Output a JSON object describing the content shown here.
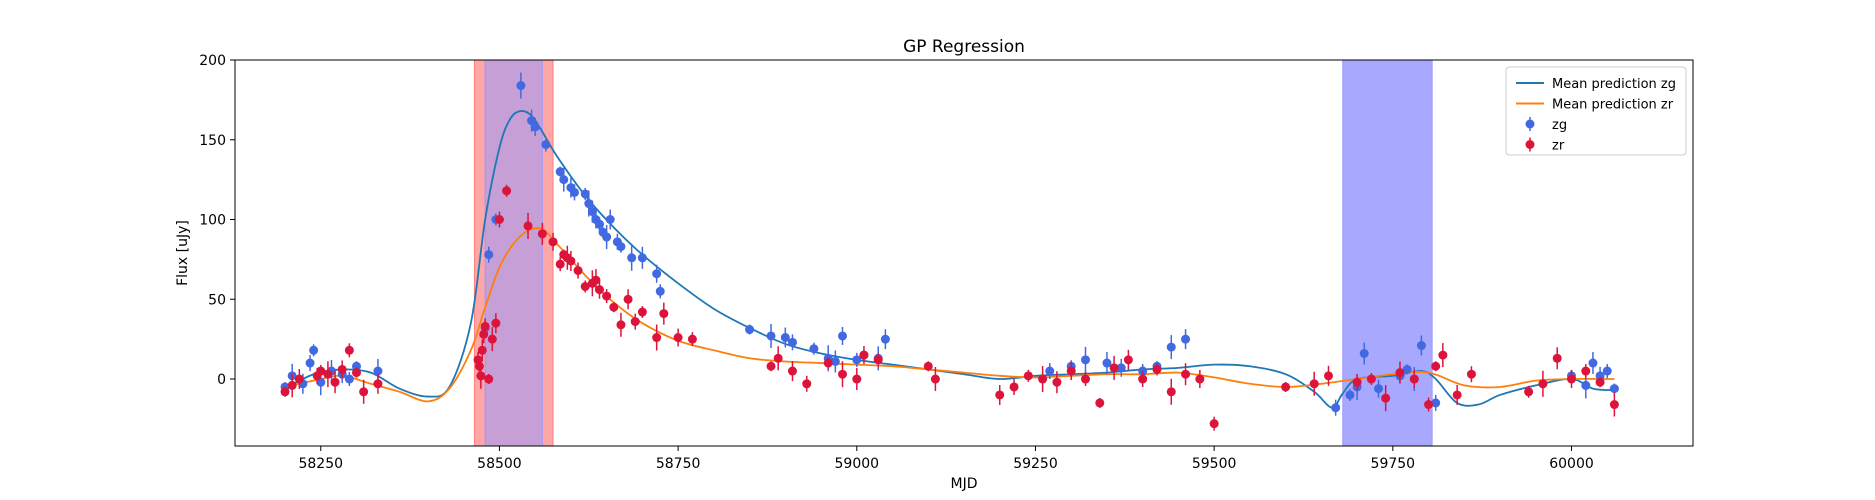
{
  "chart_data": {
    "type": "scatter",
    "title": "GP Regression",
    "xlabel": "MJD",
    "ylabel": "Flux [uJy]",
    "xlim": [
      58130,
      60170
    ],
    "ylim": [
      -42,
      200
    ],
    "x_ticks": [
      58250,
      58500,
      58750,
      59000,
      59250,
      59500,
      59750,
      60000
    ],
    "y_ticks": [
      0,
      50,
      100,
      150,
      200
    ],
    "grid": false,
    "legend_position": "top-right",
    "shaded_regions": [
      {
        "x0": 58465,
        "x1": 58575,
        "color": "#ff8080",
        "alpha": 0.7
      },
      {
        "x0": 58480,
        "x1": 58560,
        "color": "#9999ff",
        "alpha": 0.55
      },
      {
        "x0": 59680,
        "x1": 59805,
        "color": "#9999ff",
        "alpha": 0.85
      }
    ],
    "lines": [
      {
        "name": "Mean prediction zg",
        "color": "#1f77b4",
        "x": [
          58200,
          58240,
          58280,
          58320,
          58360,
          58400,
          58430,
          58460,
          58480,
          58500,
          58515,
          58530,
          58545,
          58560,
          58580,
          58620,
          58660,
          58700,
          58750,
          58800,
          58850,
          58900,
          58950,
          59000,
          59050,
          59100,
          59150,
          59200,
          59250,
          59300,
          59350,
          59400,
          59450,
          59500,
          59550,
          59600,
          59640,
          59665,
          59680,
          59700,
          59750,
          59790,
          59810,
          59840,
          59870,
          59900,
          59950,
          60000,
          60030,
          60060
        ],
        "y": [
          -6,
          3,
          6,
          4,
          -6,
          -11,
          -5,
          35,
          100,
          145,
          163,
          168,
          165,
          155,
          140,
          115,
          95,
          78,
          60,
          44,
          32,
          22,
          16,
          12,
          9,
          6,
          3,
          0,
          2,
          3,
          4,
          6,
          7,
          9,
          8,
          3,
          -8,
          -18,
          -9,
          0,
          2,
          5,
          0,
          -15,
          -16,
          -10,
          -4,
          0,
          -6,
          -7
        ]
      },
      {
        "name": "Mean prediction zr",
        "color": "#ff7f0e",
        "x": [
          58200,
          58240,
          58280,
          58320,
          58360,
          58400,
          58430,
          58460,
          58480,
          58500,
          58520,
          58540,
          58560,
          58580,
          58620,
          58660,
          58700,
          58750,
          58800,
          58850,
          58900,
          58950,
          59000,
          59050,
          59100,
          59150,
          59200,
          59250,
          59300,
          59350,
          59400,
          59450,
          59500,
          59550,
          59600,
          59650,
          59700,
          59750,
          59800,
          59850,
          59900,
          59950,
          60000,
          60060
        ],
        "y": [
          -5,
          -1,
          2,
          -3,
          -8,
          -14,
          -6,
          18,
          45,
          70,
          85,
          93,
          94,
          85,
          65,
          48,
          35,
          24,
          18,
          13,
          11,
          10,
          9,
          8,
          6,
          4,
          2,
          1,
          2,
          3,
          3,
          4,
          1,
          -3,
          -5,
          -3,
          0,
          3,
          4,
          -4,
          -5,
          -1,
          0,
          0
        ]
      }
    ],
    "series": [
      {
        "name": "zg",
        "color": "#4169e1",
        "x": [
          58200,
          58210,
          58225,
          58235,
          58240,
          58250,
          58265,
          58280,
          58290,
          58300,
          58330,
          58480,
          58485,
          58495,
          58530,
          58545,
          58550,
          58565,
          58585,
          58590,
          58600,
          58605,
          58620,
          58625,
          58630,
          58635,
          58640,
          58645,
          58650,
          58655,
          58665,
          58670,
          58685,
          58700,
          58720,
          58725,
          58850,
          58880,
          58900,
          58910,
          58940,
          58960,
          58970,
          58980,
          59000,
          59010,
          59030,
          59040,
          59270,
          59300,
          59320,
          59350,
          59370,
          59400,
          59420,
          59440,
          59460,
          59670,
          59690,
          59700,
          59710,
          59730,
          59760,
          59770,
          59780,
          59790,
          59810,
          60000,
          60020,
          60030,
          60040,
          60050,
          60060
        ],
        "y": [
          -5,
          2,
          -3,
          10,
          18,
          -2,
          5,
          3,
          0,
          8,
          5,
          32,
          78,
          100,
          184,
          162,
          158,
          147,
          130,
          125,
          120,
          117,
          116,
          110,
          105,
          100,
          97,
          92,
          89,
          100,
          86,
          83,
          76,
          76,
          66,
          55,
          31,
          27,
          26,
          23,
          19,
          13,
          11,
          27,
          12,
          15,
          13,
          25,
          5,
          8,
          12,
          10,
          7,
          5,
          8,
          20,
          25,
          -18,
          -10,
          -5,
          16,
          -6,
          2,
          6,
          0,
          21,
          -15,
          2,
          -4,
          10,
          2,
          5,
          -6
        ]
      },
      {
        "name": "zr",
        "color": "#dc143c",
        "x": [
          58200,
          58210,
          58220,
          58245,
          58250,
          58260,
          58270,
          58280,
          58290,
          58300,
          58310,
          58330,
          58470,
          58472,
          58474,
          58476,
          58478,
          58480,
          58485,
          58490,
          58495,
          58500,
          58510,
          58540,
          58560,
          58575,
          58585,
          58590,
          58595,
          58600,
          58610,
          58620,
          58630,
          58635,
          58640,
          58650,
          58660,
          58670,
          58680,
          58690,
          58700,
          58720,
          58730,
          58750,
          58770,
          58880,
          58890,
          58910,
          58930,
          58960,
          58980,
          59000,
          59010,
          59030,
          59100,
          59110,
          59200,
          59220,
          59240,
          59260,
          59280,
          59300,
          59320,
          59340,
          59360,
          59380,
          59400,
          59420,
          59440,
          59460,
          59480,
          59500,
          59600,
          59640,
          59660,
          59700,
          59720,
          59740,
          59760,
          59780,
          59800,
          59810,
          59820,
          59840,
          59860,
          59940,
          59960,
          59980,
          60000,
          60020,
          60040,
          60060
        ],
        "y": [
          -8,
          -4,
          0,
          2,
          5,
          3,
          -2,
          6,
          18,
          4,
          -8,
          -3,
          12,
          8,
          2,
          18,
          28,
          33,
          0,
          25,
          35,
          100,
          118,
          96,
          91,
          86,
          72,
          78,
          76,
          74,
          68,
          58,
          60,
          62,
          56,
          52,
          45,
          34,
          50,
          36,
          42,
          26,
          41,
          26,
          25,
          8,
          13,
          5,
          -3,
          10,
          3,
          0,
          15,
          12,
          8,
          0,
          -10,
          -5,
          2,
          0,
          -2,
          5,
          0,
          -15,
          7,
          12,
          0,
          6,
          -8,
          3,
          0,
          -28,
          -5,
          -3,
          2,
          -2,
          0,
          -12,
          4,
          0,
          -16,
          8,
          15,
          -10,
          3,
          -8,
          -3,
          13,
          0,
          5,
          -2,
          -16
        ]
      }
    ]
  }
}
